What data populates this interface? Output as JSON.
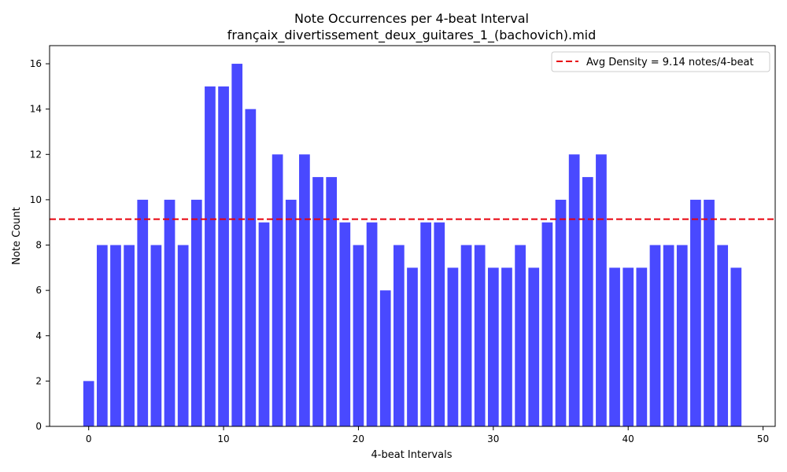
{
  "chart_data": {
    "type": "bar",
    "title": "Note Occurrences per 4-beat Interval",
    "subtitle": "françaix_divertissement_deux_guitares_1_(bachovich).mid",
    "xlabel": "4-beat Intervals",
    "ylabel": "Note Count",
    "x": [
      0,
      1,
      2,
      3,
      4,
      5,
      6,
      7,
      8,
      9,
      10,
      11,
      12,
      13,
      14,
      15,
      16,
      17,
      18,
      19,
      20,
      21,
      22,
      23,
      24,
      25,
      26,
      27,
      28,
      29,
      30,
      31,
      32,
      33,
      34,
      35,
      36,
      37,
      38,
      39,
      40,
      41,
      42,
      43,
      44,
      45,
      46,
      47,
      48
    ],
    "values": [
      2,
      8,
      8,
      8,
      10,
      8,
      10,
      8,
      10,
      15,
      15,
      16,
      14,
      9,
      12,
      10,
      12,
      11,
      11,
      9,
      8,
      9,
      6,
      8,
      7,
      9,
      9,
      7,
      8,
      8,
      7,
      7,
      8,
      7,
      9,
      10,
      12,
      11,
      12,
      7,
      7,
      7,
      8,
      8,
      8,
      10,
      10,
      8,
      7
    ],
    "xlim": [
      -2.9,
      50.9
    ],
    "ylim": [
      0,
      16.8
    ],
    "xticks": [
      0,
      10,
      20,
      30,
      40,
      50
    ],
    "yticks": [
      0,
      2,
      4,
      6,
      8,
      10,
      12,
      14,
      16
    ],
    "bar_color": "#4949ff",
    "average": {
      "value": 9.14,
      "color": "#e8000b",
      "style": "dashed",
      "label": "Avg Density = 9.14 notes/4-beat"
    },
    "legend": {
      "placement": "top-right"
    },
    "grid": false
  }
}
